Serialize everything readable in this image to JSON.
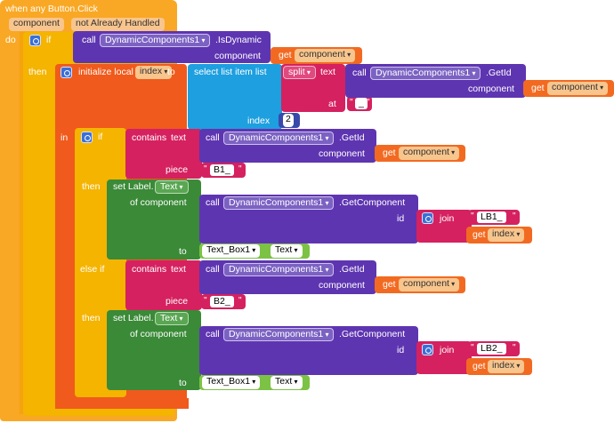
{
  "event": {
    "title": "when any Button.Click",
    "param": "component",
    "param2": "not Already Handled",
    "do": "do"
  },
  "if1": {
    "if": "if",
    "then": "then",
    "in": "in"
  },
  "call1": {
    "call": "call",
    "component": "DynamicComponents1",
    "method": ".IsDynamic",
    "arg": "component"
  },
  "get": {
    "get": "get",
    "component": "component",
    "index": "index"
  },
  "local": {
    "label": "initialize local",
    "name": "index",
    "to": "to"
  },
  "select": {
    "label": "select list item  list",
    "index": "index",
    "index_value": "2"
  },
  "split": {
    "op": "split",
    "text": "text",
    "at": "at",
    "sep": "_"
  },
  "getid": {
    "call": "call",
    "component": "DynamicComponents1",
    "method": ".GetId",
    "arg": "component"
  },
  "if2": {
    "if": "if",
    "then": "then",
    "elseif": "else if",
    "then2": "then"
  },
  "contains1": {
    "op": "contains",
    "text": "text",
    "piece": "piece",
    "piece_value": "B1_"
  },
  "contains2": {
    "op": "contains",
    "text": "text",
    "piece": "piece",
    "piece_value": "B2_"
  },
  "set1": {
    "set": "set Label.",
    "prop": "Text",
    "of_component": "of component",
    "to": "to",
    "textbox": "Text_Box1",
    "textprop": "Text"
  },
  "getcomp": {
    "call": "call",
    "component": "DynamicComponents1",
    "method": ".GetComponent",
    "id": "id"
  },
  "join": {
    "join": "join",
    "lb1": "LB1_",
    "lb2": "LB2_"
  },
  "quote": "\""
}
